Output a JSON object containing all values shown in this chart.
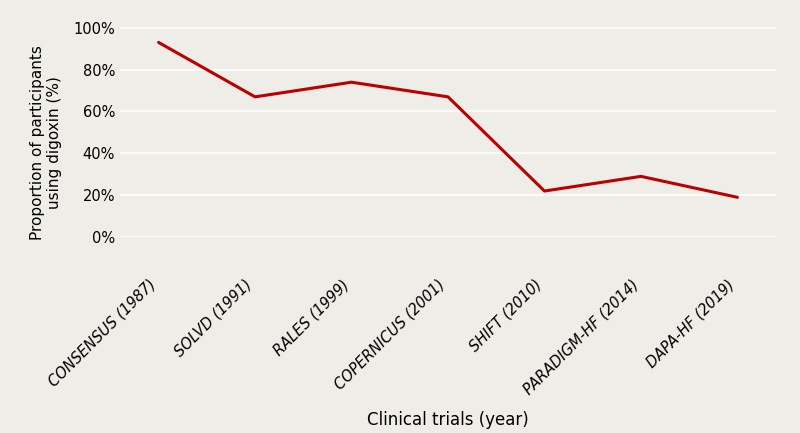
{
  "categories": [
    "CONSENSUS (1987)",
    "SOLVD (1991)",
    "RALES (1999)",
    "COPERNICUS (2001)",
    "SHIFT (2010)",
    "PARADIGM-HF (2014)",
    "DAPA-HF (2019)"
  ],
  "values": [
    0.93,
    0.67,
    0.74,
    0.67,
    0.22,
    0.29,
    0.19
  ],
  "line_color": "#bb0000",
  "line_width": 2.2,
  "xlabel": "Clinical trials (year)",
  "ylabel": "Proportion of participants\nusing digoxin (%)",
  "ylim": [
    -0.15,
    1.05
  ],
  "yticks": [
    0.0,
    0.2,
    0.4,
    0.6,
    0.8,
    1.0
  ],
  "background_color": "#eeede8",
  "grid_color": "#ffffff",
  "xlabel_fontsize": 12,
  "ylabel_fontsize": 11,
  "tick_fontsize": 10.5,
  "xtick_rotation": 45
}
